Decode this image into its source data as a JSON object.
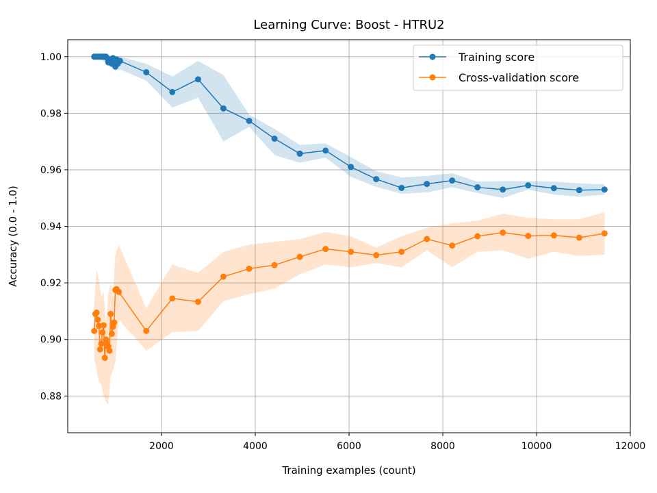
{
  "chart_data": {
    "type": "line",
    "title": "Learning Curve: Boost - HTRU2",
    "xlabel": "Training examples (count)",
    "ylabel": "Accuracy (0.0 - 1.0)",
    "xlim": [
      0,
      12000
    ],
    "ylim": [
      0.867,
      1.006
    ],
    "xticks": [
      2000,
      4000,
      6000,
      8000,
      10000,
      12000
    ],
    "yticks": [
      0.88,
      0.9,
      0.92,
      0.94,
      0.96,
      0.98,
      1.0
    ],
    "grid": true,
    "legend_position": "top-right",
    "series": [
      {
        "name": "Training score",
        "color": "#1f77b4",
        "points": [
          [
            565,
            1.0
          ],
          [
            590,
            1.0
          ],
          [
            615,
            1.0
          ],
          [
            640,
            1.0
          ],
          [
            665,
            1.0
          ],
          [
            690,
            1.0
          ],
          [
            715,
            1.0
          ],
          [
            740,
            1.0
          ],
          [
            765,
            1.0
          ],
          [
            790,
            1.0
          ],
          [
            815,
            1.0
          ],
          [
            840,
            0.9995
          ],
          [
            865,
            0.998
          ],
          [
            890,
            0.9985
          ],
          [
            915,
            0.999
          ],
          [
            940,
            0.9975
          ],
          [
            965,
            0.9995
          ],
          [
            990,
            0.9985
          ],
          [
            1015,
            0.9965
          ],
          [
            1040,
            0.999
          ],
          [
            1065,
            0.9975
          ],
          [
            1090,
            0.9985
          ],
          [
            1115,
            0.9985
          ],
          [
            1675,
            0.9945
          ],
          [
            2230,
            0.9875
          ],
          [
            2780,
            0.992
          ],
          [
            3320,
            0.9817
          ],
          [
            3870,
            0.9773
          ],
          [
            4410,
            0.971
          ],
          [
            4950,
            0.9657
          ],
          [
            5500,
            0.9668
          ],
          [
            6040,
            0.961
          ],
          [
            6580,
            0.9567
          ],
          [
            7120,
            0.9536
          ],
          [
            7660,
            0.955
          ],
          [
            8200,
            0.9562
          ],
          [
            8740,
            0.9538
          ],
          [
            9280,
            0.953
          ],
          [
            9820,
            0.9545
          ],
          [
            10370,
            0.9535
          ],
          [
            10910,
            0.9528
          ],
          [
            11450,
            0.953
          ]
        ],
        "band_x": [
          565,
          640,
          715,
          790,
          865,
          940,
          1015,
          1115,
          1675,
          2230,
          2780,
          3320,
          3870,
          4410,
          4950,
          5500,
          6040,
          6580,
          7120,
          7660,
          8200,
          8740,
          9280,
          9820,
          10370,
          10910,
          11450
        ],
        "band_upper": [
          1.0,
          1.0,
          1.0,
          1.0,
          1.0,
          1.0,
          1.0,
          1.0,
          0.9975,
          0.993,
          0.9985,
          0.9935,
          0.9795,
          0.9745,
          0.9688,
          0.9693,
          0.9645,
          0.9595,
          0.9573,
          0.9578,
          0.9588,
          0.9558,
          0.956,
          0.956,
          0.9558,
          0.9552,
          0.9548
        ],
        "band_lower": [
          1.0,
          1.0,
          0.999,
          0.998,
          0.997,
          0.9965,
          0.995,
          0.9955,
          0.9915,
          0.982,
          0.9855,
          0.97,
          0.9752,
          0.9652,
          0.9625,
          0.9643,
          0.9575,
          0.954,
          0.9515,
          0.952,
          0.9538,
          0.9518,
          0.95,
          0.953,
          0.9512,
          0.9505,
          0.9512
        ]
      },
      {
        "name": "Cross-validation score",
        "color": "#ff7f0e",
        "points": [
          [
            565,
            0.903
          ],
          [
            590,
            0.909
          ],
          [
            615,
            0.9095
          ],
          [
            640,
            0.907
          ],
          [
            665,
            0.9048
          ],
          [
            690,
            0.8965
          ],
          [
            715,
            0.8985
          ],
          [
            740,
            0.9025
          ],
          [
            765,
            0.905
          ],
          [
            790,
            0.8935
          ],
          [
            815,
            0.9
          ],
          [
            840,
            0.8985
          ],
          [
            865,
            0.8975
          ],
          [
            890,
            0.896
          ],
          [
            915,
            0.909
          ],
          [
            940,
            0.902
          ],
          [
            965,
            0.9045
          ],
          [
            990,
            0.906
          ],
          [
            1015,
            0.9175
          ],
          [
            1040,
            0.9178
          ],
          [
            1090,
            0.9168
          ],
          [
            1675,
            0.903
          ],
          [
            2230,
            0.9145
          ],
          [
            2780,
            0.9133
          ],
          [
            3320,
            0.9222
          ],
          [
            3870,
            0.925
          ],
          [
            4410,
            0.9263
          ],
          [
            4950,
            0.9292
          ],
          [
            5500,
            0.932
          ],
          [
            6040,
            0.931
          ],
          [
            6580,
            0.9298
          ],
          [
            7120,
            0.931
          ],
          [
            7660,
            0.9355
          ],
          [
            8200,
            0.9332
          ],
          [
            8740,
            0.9365
          ],
          [
            9280,
            0.9378
          ],
          [
            9820,
            0.9366
          ],
          [
            10370,
            0.9368
          ],
          [
            10910,
            0.936
          ],
          [
            11450,
            0.9375
          ]
        ],
        "band_x": [
          565,
          615,
          665,
          715,
          765,
          815,
          865,
          915,
          965,
          1015,
          1090,
          1675,
          2230,
          2780,
          3320,
          3870,
          4410,
          4950,
          5500,
          6040,
          6580,
          7120,
          7660,
          8200,
          8740,
          9280,
          9820,
          10370,
          10910,
          11450
        ],
        "band_upper": [
          0.913,
          0.925,
          0.921,
          0.915,
          0.917,
          0.906,
          0.916,
          0.92,
          0.915,
          0.93,
          0.9335,
          0.911,
          0.9265,
          0.9235,
          0.931,
          0.9335,
          0.9345,
          0.9355,
          0.938,
          0.9365,
          0.9325,
          0.9365,
          0.9395,
          0.941,
          0.942,
          0.9445,
          0.943,
          0.9425,
          0.9425,
          0.945
        ],
        "band_lower": [
          0.893,
          0.889,
          0.885,
          0.884,
          0.88,
          0.878,
          0.877,
          0.887,
          0.889,
          0.892,
          0.907,
          0.896,
          0.9025,
          0.903,
          0.9135,
          0.916,
          0.918,
          0.923,
          0.9265,
          0.9255,
          0.927,
          0.9255,
          0.9315,
          0.9255,
          0.931,
          0.9315,
          0.9285,
          0.931,
          0.9295,
          0.93
        ]
      }
    ]
  }
}
